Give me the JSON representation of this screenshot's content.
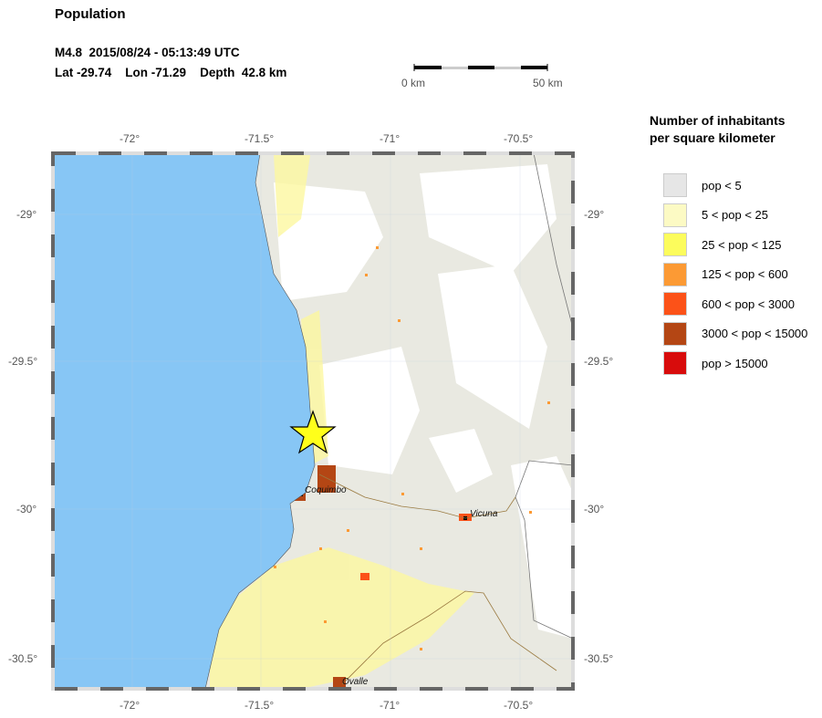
{
  "title": "Population",
  "event": {
    "line1": "M4.8  2015/08/24 - 05:13:49 UTC",
    "lat_label": "Lat -29.74",
    "lon_label": "Lon -71.29",
    "depth_label": "Depth  42.8 km",
    "lat": -29.74,
    "lon": -71.29,
    "marker": "star-icon"
  },
  "scale": {
    "start": "0 km",
    "end": "50 km"
  },
  "axes": {
    "lon_ticks": [
      "-72°",
      "-71.5°",
      "-71°",
      "-70.5°"
    ],
    "lat_ticks": [
      "-29°",
      "-29.5°",
      "-30°",
      "-30.5°"
    ]
  },
  "cities": [
    "Coquimbo",
    "Vicuna",
    "Ovalle"
  ],
  "colors": {
    "ocean": "#87c6f5",
    "land": "#e9e9e1"
  },
  "legend": {
    "title_line1": "Number of inhabitants",
    "title_line2": "per square kilometer",
    "items": [
      {
        "label": "pop < 5",
        "color": "#e6e6e6"
      },
      {
        "label": "5 < pop < 25",
        "color": "#fcfac4"
      },
      {
        "label": "25 < pop < 125",
        "color": "#fcfc5c"
      },
      {
        "label": "125 < pop < 600",
        "color": "#fc9a34"
      },
      {
        "label": "600 < pop < 3000",
        "color": "#fc5218"
      },
      {
        "label": "3000 < pop < 15000",
        "color": "#b44614"
      },
      {
        "label": "pop > 15000",
        "color": "#d80c0c"
      }
    ]
  }
}
